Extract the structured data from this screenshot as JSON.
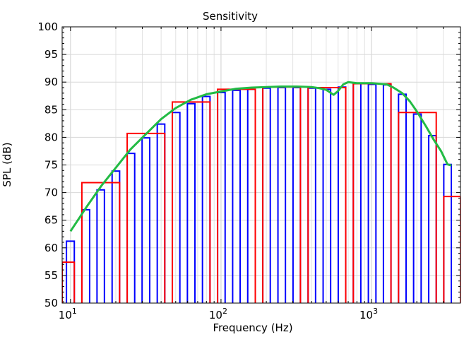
{
  "chart_data": {
    "type": "bar",
    "title": "Sensitivity",
    "xlabel": "Frequency (Hz)",
    "ylabel": "SPL (dB)",
    "x_scale": "log",
    "xlim": [
      8.8,
      3900
    ],
    "ylim": [
      50,
      100
    ],
    "yticks": [
      "50",
      "55",
      "60",
      "65",
      "70",
      "75",
      "80",
      "85",
      "90",
      "95",
      "100"
    ],
    "xticks": [
      {
        "value": 10,
        "base": "10",
        "exp": "1"
      },
      {
        "value": 100,
        "base": "10",
        "exp": "2"
      },
      {
        "value": 1000,
        "base": "10",
        "exp": "3"
      }
    ],
    "grid": true,
    "legend": "none",
    "series": [
      {
        "style": "bars",
        "color": "#0000ff",
        "bars": [
          {
            "x0": 9.4,
            "x1": 10.6,
            "y": 61.2
          },
          {
            "x0": 11.9,
            "x1": 13.4,
            "y": 66.9
          },
          {
            "x0": 15.0,
            "x1": 16.8,
            "y": 70.5
          },
          {
            "x0": 18.9,
            "x1": 21.2,
            "y": 73.9
          },
          {
            "x0": 23.8,
            "x1": 26.7,
            "y": 77.1
          },
          {
            "x0": 29.9,
            "x1": 33.6,
            "y": 79.9
          },
          {
            "x0": 37.7,
            "x1": 42.3,
            "y": 82.4
          },
          {
            "x0": 47.5,
            "x1": 53.3,
            "y": 84.5
          },
          {
            "x0": 59.8,
            "x1": 67.1,
            "y": 86.1
          },
          {
            "x0": 75.3,
            "x1": 84.5,
            "y": 87.4
          },
          {
            "x0": 94.9,
            "x1": 106.5,
            "y": 88.1
          },
          {
            "x0": 119.5,
            "x1": 134,
            "y": 88.5
          },
          {
            "x0": 150.5,
            "x1": 169,
            "y": 88.7
          },
          {
            "x0": 189.5,
            "x1": 212.5,
            "y": 88.9
          },
          {
            "x0": 239,
            "x1": 268,
            "y": 89.0
          },
          {
            "x0": 301,
            "x1": 337,
            "y": 89.0
          },
          {
            "x0": 379,
            "x1": 425,
            "y": 88.9
          },
          {
            "x0": 477,
            "x1": 535,
            "y": 88.7
          },
          {
            "x0": 601,
            "x1": 674,
            "y": 89.1
          },
          {
            "x0": 757,
            "x1": 849,
            "y": 89.7
          },
          {
            "x0": 953,
            "x1": 1070,
            "y": 89.6
          },
          {
            "x0": 1200,
            "x1": 1347,
            "y": 89.5
          },
          {
            "x0": 1512,
            "x1": 1697,
            "y": 87.8
          },
          {
            "x0": 1904,
            "x1": 2137,
            "y": 84.2
          },
          {
            "x0": 2399,
            "x1": 2692,
            "y": 80.3
          },
          {
            "x0": 3022,
            "x1": 3391,
            "y": 75.1
          }
        ]
      },
      {
        "style": "bars",
        "color": "#ff0000",
        "bars": [
          {
            "x0": 8.8,
            "x1": 10.6,
            "y": 57.4
          },
          {
            "x0": 11.9,
            "x1": 21.2,
            "y": 71.8
          },
          {
            "x0": 23.8,
            "x1": 42.3,
            "y": 80.7
          },
          {
            "x0": 47.5,
            "x1": 84.5,
            "y": 86.4
          },
          {
            "x0": 94.9,
            "x1": 169,
            "y": 88.7
          },
          {
            "x0": 189.5,
            "x1": 337,
            "y": 89.1
          },
          {
            "x0": 379,
            "x1": 674,
            "y": 89.0
          },
          {
            "x0": 757,
            "x1": 1347,
            "y": 89.7
          },
          {
            "x0": 1512,
            "x1": 2692,
            "y": 84.5
          },
          {
            "x0": 3022,
            "x1": 3900,
            "y": 69.3
          }
        ]
      },
      {
        "style": "line",
        "color": "#22bb44",
        "x": [
          10,
          11.5,
          13,
          16,
          20,
          25,
          32,
          40,
          50,
          63,
          80,
          100,
          126,
          160,
          200,
          250,
          320,
          400,
          450,
          500,
          560,
          600,
          650,
          700,
          800,
          1000,
          1260,
          1400,
          1600,
          1800,
          2000,
          2300,
          2600,
          2900,
          3200,
          3400
        ],
        "y": [
          63.0,
          65.5,
          67.7,
          71.2,
          74.5,
          77.8,
          80.7,
          83.3,
          85.3,
          86.8,
          87.8,
          88.3,
          88.8,
          89.0,
          89.1,
          89.2,
          89.2,
          89.1,
          88.9,
          88.6,
          87.7,
          88.4,
          89.6,
          90.0,
          89.8,
          89.8,
          89.6,
          89.0,
          88.0,
          86.5,
          84.7,
          82.0,
          79.5,
          77.5,
          75.1,
          74.9
        ]
      }
    ]
  }
}
